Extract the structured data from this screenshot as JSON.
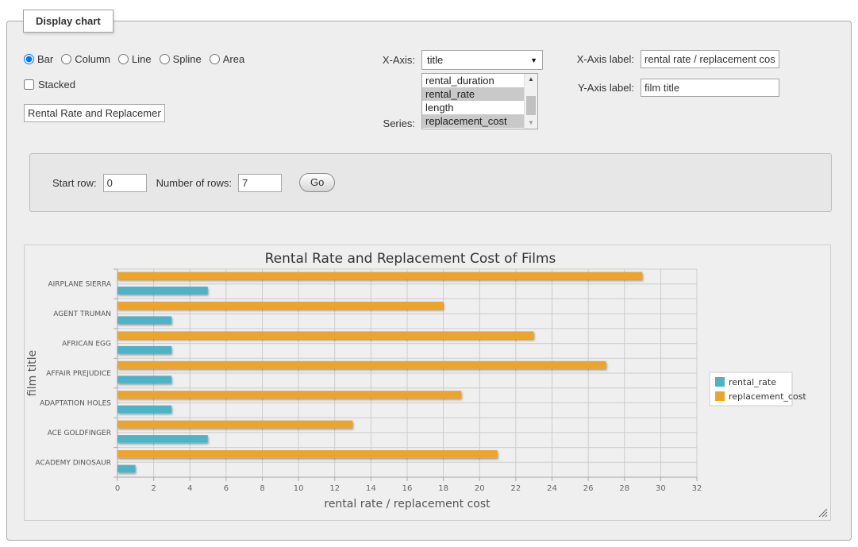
{
  "panel": {
    "legend_title": "Display chart",
    "chart_types": [
      {
        "label": "Bar",
        "selected": true
      },
      {
        "label": "Column",
        "selected": false
      },
      {
        "label": "Line",
        "selected": false
      },
      {
        "label": "Spline",
        "selected": false
      },
      {
        "label": "Area",
        "selected": false
      }
    ],
    "stacked_label": "Stacked",
    "stacked_checked": false,
    "chart_title_input": "Rental Rate and Replacement Cost of Films",
    "x_axis": {
      "label": "X-Axis:",
      "value": "title"
    },
    "series": {
      "label": "Series:",
      "options": [
        {
          "label": "rental_duration",
          "selected": false
        },
        {
          "label": "rental_rate",
          "selected": true
        },
        {
          "label": "length",
          "selected": false
        },
        {
          "label": "replacement_cost",
          "selected": true
        }
      ]
    },
    "x_axis_label": {
      "label": "X-Axis label:",
      "value": "rental rate / replacement cost"
    },
    "y_axis_label": {
      "label": "Y-Axis label:",
      "value": "film title"
    }
  },
  "rows_panel": {
    "start_row_label": "Start row:",
    "start_row_value": "0",
    "num_rows_label": "Number of rows:",
    "num_rows_value": "7",
    "go_label": "Go"
  },
  "chart_data": {
    "type": "bar",
    "title": "Rental Rate and Replacement Cost of Films",
    "categories": [
      "AIRPLANE SIERRA",
      "AGENT TRUMAN",
      "AFRICAN EGG",
      "AFFAIR PREJUDICE",
      "ADAPTATION HOLES",
      "ACE GOLDFINGER",
      "ACADEMY DINOSAUR"
    ],
    "series": [
      {
        "name": "rental_rate",
        "color": "#4DB3C6",
        "values": [
          4.99,
          2.99,
          2.99,
          2.99,
          2.99,
          4.99,
          0.99
        ]
      },
      {
        "name": "replacement_cost",
        "color": "#EDA42C",
        "values": [
          28.99,
          17.99,
          22.99,
          26.99,
          18.99,
          12.99,
          20.99
        ]
      }
    ],
    "xlabel": "rental rate / replacement cost",
    "ylabel": "film title",
    "xlim": [
      0,
      32
    ],
    "tick_step": 2,
    "grid": true,
    "legend_position": "right",
    "colors": {
      "grid": "#cccccc",
      "axis": "#aaaaaa",
      "tick_label": "#666666",
      "category_label": "#555555",
      "axis_title": "#555555",
      "chart_title": "#333333",
      "legend_bg": "#ffffff",
      "legend_border": "#cccccc"
    }
  }
}
